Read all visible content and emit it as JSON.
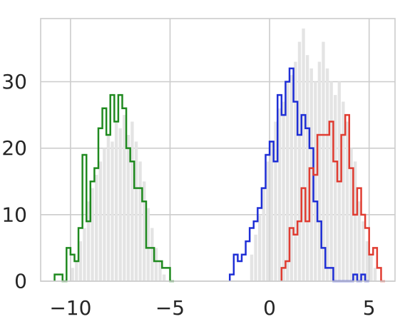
{
  "chart_data": {
    "type": "histogram",
    "title": "",
    "xlabel": "",
    "ylabel": "",
    "xlim": [
      -11.5,
      6.3
    ],
    "ylim": [
      0,
      39.5
    ],
    "grid": true,
    "legend": "none",
    "x_ticks": [
      {
        "value": -10,
        "label": "−10"
      },
      {
        "value": -5,
        "label": "−5"
      },
      {
        "value": 0,
        "label": "0"
      },
      {
        "value": 5,
        "label": "5"
      }
    ],
    "y_ticks": [
      {
        "value": 0,
        "label": "0"
      },
      {
        "value": 10,
        "label": "10"
      },
      {
        "value": 20,
        "label": "20"
      },
      {
        "value": 30,
        "label": "30"
      }
    ],
    "combined": {
      "name": "all",
      "color": "#e4e4e4",
      "bins": [
        [
          -10.0,
          2
        ],
        [
          -9.8,
          3
        ],
        [
          -9.6,
          6
        ],
        [
          -9.4,
          8
        ],
        [
          -9.2,
          12
        ],
        [
          -9.0,
          14
        ],
        [
          -8.8,
          16
        ],
        [
          -8.6,
          18
        ],
        [
          -8.4,
          20
        ],
        [
          -8.2,
          22
        ],
        [
          -8.0,
          21
        ],
        [
          -7.8,
          24
        ],
        [
          -7.6,
          23
        ],
        [
          -7.4,
          25
        ],
        [
          -7.2,
          22
        ],
        [
          -7.0,
          24
        ],
        [
          -6.8,
          21
        ],
        [
          -6.6,
          18
        ],
        [
          -6.4,
          15
        ],
        [
          -6.2,
          11
        ],
        [
          -6.0,
          8
        ],
        [
          -5.8,
          5
        ],
        [
          -5.6,
          3
        ],
        [
          -5.4,
          1
        ],
        [
          -1.0,
          4
        ],
        [
          -0.8,
          7
        ],
        [
          -0.6,
          10
        ],
        [
          -0.4,
          14
        ],
        [
          -0.2,
          18
        ],
        [
          0.0,
          21
        ],
        [
          0.2,
          24
        ],
        [
          0.4,
          26
        ],
        [
          0.6,
          27
        ],
        [
          0.8,
          30
        ],
        [
          1.0,
          31
        ],
        [
          1.2,
          33
        ],
        [
          1.4,
          36
        ],
        [
          1.6,
          38
        ],
        [
          1.8,
          34
        ],
        [
          2.0,
          32
        ],
        [
          2.2,
          30
        ],
        [
          2.4,
          33
        ],
        [
          2.6,
          36
        ],
        [
          2.8,
          32
        ],
        [
          3.0,
          30
        ],
        [
          3.2,
          28
        ],
        [
          3.4,
          30
        ],
        [
          3.6,
          27
        ],
        [
          3.8,
          24
        ],
        [
          4.0,
          20
        ],
        [
          4.2,
          18
        ],
        [
          4.4,
          12
        ],
        [
          4.6,
          9
        ],
        [
          4.8,
          6
        ],
        [
          5.0,
          4
        ],
        [
          5.2,
          2
        ]
      ]
    },
    "series": [
      {
        "name": "",
        "color": "#1f8a1f",
        "bin_edges": [
          -10.8,
          -10.6,
          -10.4,
          -10.2,
          -10.0,
          -9.8,
          -9.6,
          -9.4,
          -9.2,
          -9.0,
          -8.8,
          -8.6,
          -8.4,
          -8.2,
          -8.0,
          -7.8,
          -7.6,
          -7.4,
          -7.2,
          -7.0,
          -6.8,
          -6.6,
          -6.4,
          -6.2,
          -6.0,
          -5.8,
          -5.6,
          -5.4,
          -5.2,
          -5.0,
          -4.8
        ],
        "counts": [
          1,
          1,
          0,
          5,
          4,
          3,
          8,
          19,
          9,
          15,
          17,
          23,
          26,
          22,
          28,
          24,
          28,
          26,
          20,
          18,
          14,
          14,
          12,
          5,
          5,
          3,
          3,
          2,
          2,
          0
        ]
      },
      {
        "name": "",
        "color": "#1f2fd6",
        "bin_edges": [
          -2.0,
          -1.8,
          -1.6,
          -1.4,
          -1.2,
          -1.0,
          -0.8,
          -0.6,
          -0.4,
          -0.2,
          0.0,
          0.2,
          0.4,
          0.6,
          0.8,
          1.0,
          1.2,
          1.4,
          1.6,
          1.8,
          2.0,
          2.2,
          2.4,
          2.6,
          2.8,
          3.0,
          3.2,
          3.4,
          3.6,
          3.8,
          4.0,
          4.2,
          4.4,
          4.6,
          4.8,
          5.0
        ],
        "counts": [
          1,
          4,
          3,
          4,
          6,
          8,
          9,
          11,
          14,
          19,
          21,
          18,
          28,
          25,
          30,
          32,
          27,
          22,
          25,
          23,
          20,
          12,
          9,
          5,
          2,
          2,
          0,
          0,
          0,
          0,
          0,
          1,
          0,
          1,
          0
        ]
      },
      {
        "name": "",
        "color": "#e03c31",
        "bin_edges": [
          0.6,
          0.8,
          1.0,
          1.2,
          1.4,
          1.6,
          1.8,
          2.0,
          2.2,
          2.4,
          2.6,
          2.8,
          3.0,
          3.2,
          3.4,
          3.6,
          3.8,
          4.0,
          4.2,
          4.4,
          4.6,
          4.8,
          5.0,
          5.2,
          5.4,
          5.6,
          5.8
        ],
        "counts": [
          2,
          3,
          8,
          7,
          9,
          14,
          9,
          17,
          16,
          22,
          22,
          22,
          24,
          18,
          15,
          22,
          25,
          17,
          10,
          14,
          10,
          8,
          4,
          5,
          2,
          0
        ]
      }
    ]
  }
}
